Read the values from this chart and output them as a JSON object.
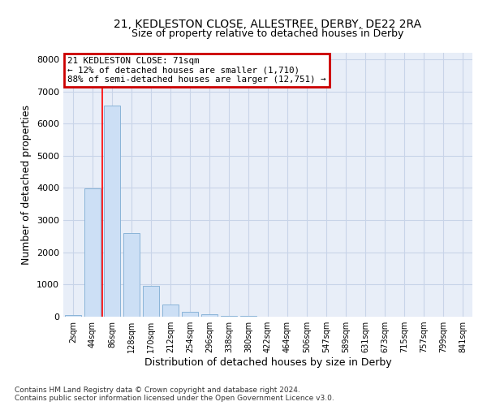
{
  "title_line1": "21, KEDLESTON CLOSE, ALLESTREE, DERBY, DE22 2RA",
  "title_line2": "Size of property relative to detached houses in Derby",
  "xlabel": "Distribution of detached houses by size in Derby",
  "ylabel": "Number of detached properties",
  "bar_labels": [
    "2sqm",
    "44sqm",
    "86sqm",
    "128sqm",
    "170sqm",
    "212sqm",
    "254sqm",
    "296sqm",
    "338sqm",
    "380sqm",
    "422sqm",
    "464sqm",
    "506sqm",
    "547sqm",
    "589sqm",
    "631sqm",
    "673sqm",
    "715sqm",
    "757sqm",
    "799sqm",
    "841sqm"
  ],
  "bar_values": [
    50,
    3980,
    6560,
    2600,
    950,
    380,
    160,
    70,
    30,
    15,
    8,
    4,
    2,
    1,
    1,
    0,
    0,
    0,
    0,
    0,
    0
  ],
  "bar_color": "#ccdff5",
  "bar_edge_color": "#8ab4d8",
  "red_line_x": 1.5,
  "annotation_text": "21 KEDLESTON CLOSE: 71sqm\n← 12% of detached houses are smaller (1,710)\n88% of semi-detached houses are larger (12,751) →",
  "annotation_box_edgecolor": "#cc0000",
  "ylim": [
    0,
    8200
  ],
  "yticks": [
    0,
    1000,
    2000,
    3000,
    4000,
    5000,
    6000,
    7000,
    8000
  ],
  "grid_color": "#c8d4e8",
  "plot_bg_color": "#e8eef8",
  "fig_bg_color": "#ffffff",
  "footnote": "Contains HM Land Registry data © Crown copyright and database right 2024.\nContains public sector information licensed under the Open Government Licence v3.0."
}
